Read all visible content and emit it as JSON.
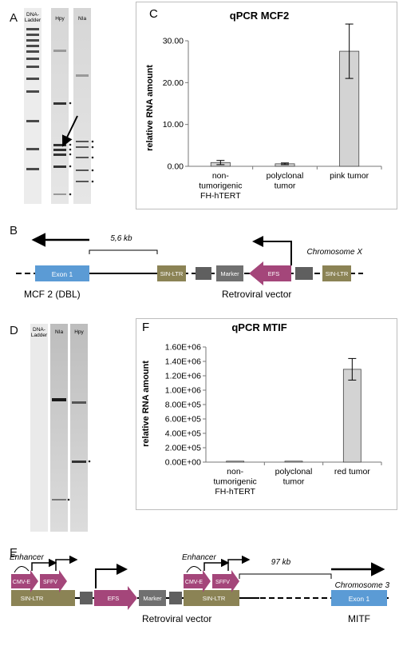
{
  "panels": {
    "A": {
      "label": "A",
      "ladder_label": "DNA-\nLadder",
      "lane1": "Hpy",
      "lane2": "NIa"
    },
    "C": {
      "label": "C"
    },
    "B": {
      "label": "B",
      "distance": "5,6 kb",
      "chromosome": "Chromosome X",
      "exon": "Exon 1",
      "sinltr": "SIN-LTR",
      "marker": "Marker",
      "efs": "EFS",
      "gene": "MCF 2 (DBL)",
      "vector": "Retroviral vector"
    },
    "D": {
      "label": "D",
      "ladder_label": "DNA-\nLadder",
      "lane1": "NIa",
      "lane2": "Hpy"
    },
    "F": {
      "label": "F"
    },
    "E": {
      "label": "E",
      "enhancer": "Enhancer",
      "cmve": "CMV-E",
      "sffv": "SFFV",
      "sinltr": "SIN-LTR",
      "efs": "EFS",
      "marker": "Marker",
      "distance": "97 kb",
      "chromosome": "Chromosome 3",
      "exon": "Exon 1",
      "vector": "Retroviral vector",
      "gene": "MITF"
    }
  },
  "colors": {
    "exon": "#5b9bd5",
    "ltr": "#8b8355",
    "efs": "#a4467a",
    "marker": "#707070",
    "bar": "#d3d3d3"
  },
  "chart_data": [
    {
      "type": "bar",
      "title": "qPCR MCF2",
      "ylabel": "relative RNA amount",
      "categories": [
        "non-tumorigenic FH-hTERT",
        "polyclonal tumor",
        "pink tumor"
      ],
      "category_lines": [
        [
          "non-",
          "tumorigenic",
          "FH-hTERT"
        ],
        [
          "polyclonal",
          "tumor"
        ],
        [
          "pink tumor"
        ]
      ],
      "values": [
        0.9,
        0.6,
        27.5
      ],
      "errors": [
        0.5,
        0.2,
        6.5
      ],
      "ylim": [
        0,
        30
      ],
      "yticks": [
        "0.00",
        "10.00",
        "20.00",
        "30.00"
      ],
      "ytick_values": [
        0,
        10,
        20,
        30
      ]
    },
    {
      "type": "bar",
      "title": "qPCR MTIF",
      "ylabel": "relative RNA amount",
      "categories": [
        "non-tumorigenic FH-hTERT",
        "polyclonal tumor",
        "red tumor"
      ],
      "category_lines": [
        [
          "non-",
          "tumorigenic",
          "FH-hTERT"
        ],
        [
          "polyclonal",
          "tumor"
        ],
        [
          "red tumor"
        ]
      ],
      "values": [
        0,
        0,
        1290000
      ],
      "errors": [
        0,
        0,
        150000
      ],
      "ylim": [
        0,
        1600000
      ],
      "yticks": [
        "0.00E+00",
        "2.00E+05",
        "4.00E+05",
        "6.00E+05",
        "8.00E+05",
        "1.00E+06",
        "1.20E+06",
        "1.40E+06",
        "1.60E+06"
      ],
      "ytick_values": [
        0,
        200000,
        400000,
        600000,
        800000,
        1000000,
        1200000,
        1400000,
        1600000
      ]
    }
  ]
}
